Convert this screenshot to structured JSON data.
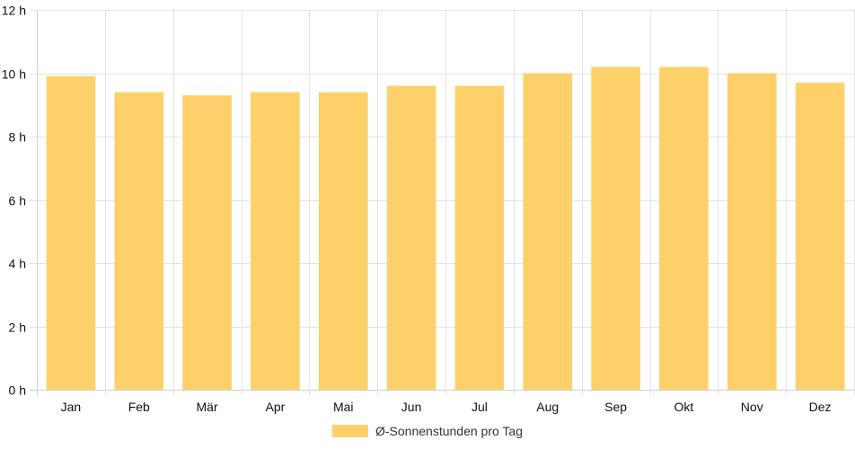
{
  "chart_data": {
    "type": "bar",
    "categories": [
      "Jan",
      "Feb",
      "Mär",
      "Apr",
      "Mai",
      "Jun",
      "Jul",
      "Aug",
      "Sep",
      "Okt",
      "Nov",
      "Dez"
    ],
    "series": [
      {
        "name": "Ø-Sonnenstunden pro Tag",
        "values": [
          9.9,
          9.4,
          9.3,
          9.4,
          9.4,
          9.6,
          9.6,
          10.0,
          10.2,
          10.2,
          10.0,
          9.7
        ],
        "color": "#fdd069"
      }
    ],
    "yticks": [
      "0 h",
      "2 h",
      "4 h",
      "6 h",
      "8 h",
      "10 h",
      "12 h"
    ],
    "ylim": [
      0,
      12
    ],
    "grid": true,
    "legend_position": "bottom"
  }
}
